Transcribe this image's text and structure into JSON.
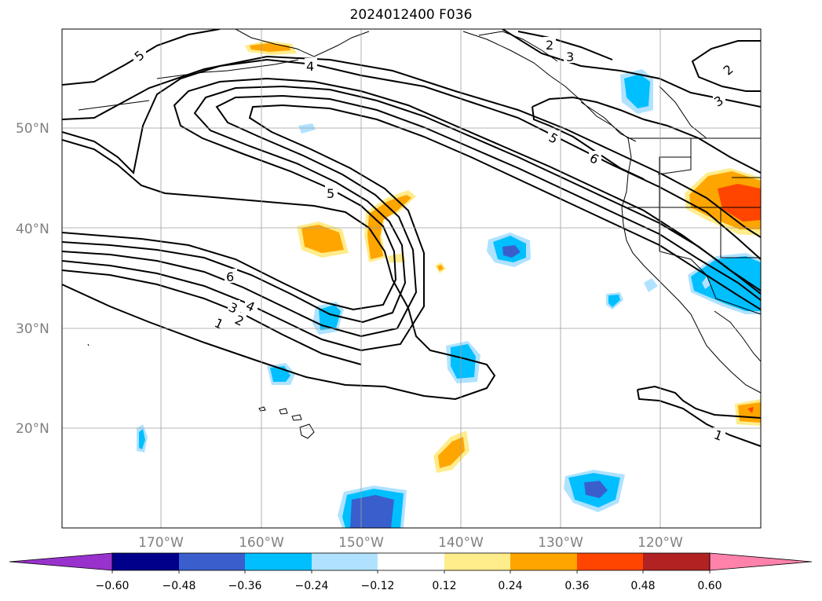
{
  "title": "2024012400 F036",
  "lat_labels": [
    "50°N",
    "40°N",
    "30°N",
    "20°N"
  ],
  "lon_labels": [
    "170°W",
    "160°W",
    "150°W",
    "140°W",
    "130°W",
    "120°W"
  ],
  "colorbar": {
    "tick_labels": [
      "−0.60",
      "−0.48",
      "−0.36",
      "−0.24",
      "−0.12",
      "0.12",
      "0.24",
      "0.36",
      "0.48",
      "0.60"
    ],
    "colors": [
      "#9932cc",
      "#00008b",
      "#3a5fcd",
      "#00bfff",
      "#b0e2ff",
      "#ffffff",
      "#ffec8b",
      "#ffa500",
      "#ff4500",
      "#b22222",
      "#ff82ab"
    ]
  },
  "contour_labels": [
    "5",
    "4",
    "2",
    "3",
    "2",
    "3",
    "5",
    "6",
    "5",
    "6",
    "4",
    "3",
    "2",
    "1",
    "1"
  ],
  "shading_colors": {
    "light_blue": "#b0e2ff",
    "blue": "#00bfff",
    "dark_blue": "#3a5fcd",
    "yellow": "#ffec8b",
    "orange": "#ffa500",
    "red": "#ff4500"
  }
}
